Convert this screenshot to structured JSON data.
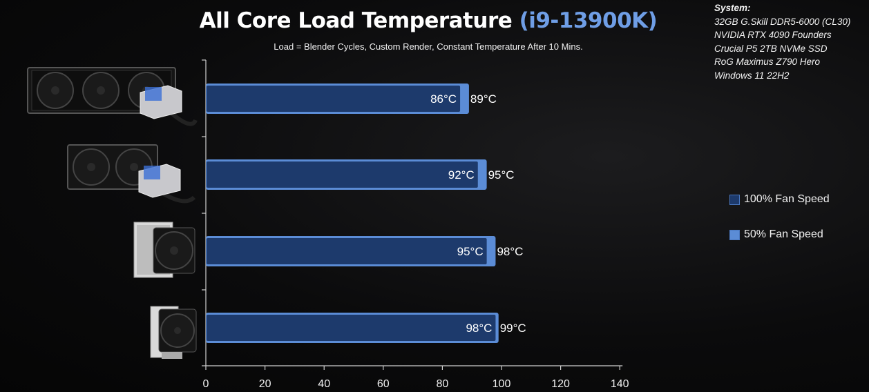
{
  "chart_data": {
    "type": "bar",
    "orientation": "horizontal",
    "title": "All Core Load Temperature",
    "title_highlight": "(i9-13900K)",
    "subtitle": "Load = Blender Cycles, Custom Render, Constant Temperature After 10 Mins.",
    "categories": [
      "3x120mm AIO liquid cooler",
      "2x120mm AIO liquid cooler",
      "Dual-tower air cooler",
      "Single-tower air cooler"
    ],
    "series": [
      {
        "name": "100% Fan Speed",
        "values": [
          86,
          92,
          95,
          98
        ],
        "labels": [
          "86°C",
          "92°C",
          "95°C",
          "98°C"
        ],
        "color": "#1d3a6c"
      },
      {
        "name": "50% Fan Speed",
        "values": [
          89,
          95,
          98,
          99
        ],
        "labels": [
          "89°C",
          "95°C",
          "98°C",
          "99°C"
        ],
        "color": "#5b8cd6"
      }
    ],
    "xlim": [
      0,
      140
    ],
    "xticks": [
      "0",
      "20",
      "40",
      "60",
      "80",
      "100",
      "120",
      "140"
    ],
    "legend_position": "right"
  },
  "system": {
    "header": "System:",
    "lines": [
      "32GB G.Skill DDR5-6000 (CL30)",
      "NVIDIA RTX 4090 Founders",
      "Crucial P5 2TB NVMe SSD",
      "RoG Maximus Z790 Hero",
      "Windows 11 22H2"
    ]
  },
  "legend": {
    "fan100": "100% Fan Speed",
    "fan50": "50% Fan Speed",
    "fan100_color": "#1d3a6c",
    "fan50_color": "#5b8cd6"
  }
}
